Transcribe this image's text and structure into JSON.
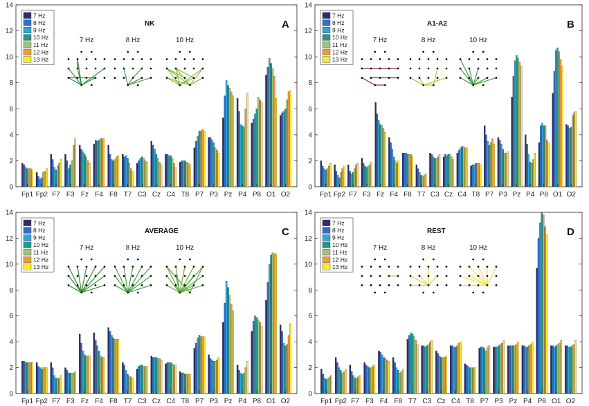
{
  "figure_title": "",
  "legend": {
    "entries": [
      "7 Hz",
      "8 Hz",
      "9 Hz",
      "10 Hz",
      "11 Hz",
      "12 Hz",
      "13 Hz"
    ],
    "colors": [
      "#2b2f6b",
      "#2f6fcf",
      "#2fa6da",
      "#1f9a8a",
      "#9cc47a",
      "#f09b3c",
      "#f7ee2a"
    ]
  },
  "inset_labels": [
    "7 Hz",
    "8 Hz",
    "10 Hz"
  ],
  "chart_data": [
    {
      "type": "bar",
      "title": "NK",
      "panel_letter": "A",
      "categories": [
        "Fp1",
        "Fp2",
        "F7",
        "F3",
        "Fz",
        "F4",
        "F8",
        "T7",
        "C3",
        "Cz",
        "C4",
        "T8",
        "P7",
        "P3",
        "Pz",
        "P4",
        "P8",
        "O1",
        "O2"
      ],
      "ylim": [
        0,
        14
      ],
      "yticks": [
        0,
        2,
        4,
        6,
        8,
        10,
        12,
        14
      ],
      "series": [
        {
          "name": "7 Hz",
          "values": [
            1.8,
            1.1,
            2.5,
            2.5,
            3.2,
            3.3,
            3.2,
            2.5,
            1.8,
            3.5,
            2.5,
            1.9,
            3.0,
            3.8,
            5.3,
            6.8,
            4.9,
            8.6,
            5.5
          ]
        },
        {
          "name": "8 Hz",
          "values": [
            1.7,
            0.8,
            2.1,
            2.0,
            2.9,
            3.6,
            2.5,
            2.3,
            2.0,
            3.2,
            2.5,
            2.0,
            3.5,
            3.8,
            7.0,
            5.8,
            5.2,
            9.2,
            5.7
          ]
        },
        {
          "name": "9 Hz",
          "values": [
            1.5,
            0.6,
            1.5,
            1.4,
            2.7,
            3.5,
            2.1,
            2.4,
            2.2,
            2.9,
            2.4,
            2.0,
            3.9,
            3.6,
            8.2,
            4.8,
            5.6,
            9.9,
            5.8
          ]
        },
        {
          "name": "10 Hz",
          "values": [
            1.4,
            0.7,
            1.3,
            1.7,
            2.5,
            3.6,
            2.0,
            2.2,
            2.3,
            2.5,
            2.4,
            2.0,
            4.3,
            3.4,
            7.8,
            4.7,
            6.0,
            9.5,
            6.0
          ]
        },
        {
          "name": "11 Hz",
          "values": [
            1.4,
            1.1,
            1.6,
            2.0,
            2.3,
            3.7,
            2.1,
            1.8,
            2.2,
            2.2,
            2.2,
            1.9,
            4.3,
            3.0,
            7.6,
            4.6,
            6.9,
            9.1,
            6.7
          ]
        },
        {
          "name": "12 Hz",
          "values": [
            1.4,
            1.2,
            1.8,
            3.2,
            2.0,
            3.7,
            2.3,
            1.4,
            2.0,
            1.9,
            1.8,
            1.8,
            4.4,
            2.8,
            7.3,
            6.0,
            6.7,
            8.5,
            7.3
          ]
        },
        {
          "name": "13 Hz",
          "values": [
            1.3,
            1.4,
            2.1,
            3.7,
            1.8,
            3.7,
            2.4,
            1.2,
            1.9,
            1.7,
            1.5,
            1.7,
            4.3,
            2.6,
            7.0,
            7.2,
            6.5,
            6.8,
            7.4
          ]
        }
      ],
      "xlabel": "",
      "ylabel": ""
    },
    {
      "type": "bar",
      "title": "A1-A2",
      "panel_letter": "B",
      "categories": [
        "Fp1",
        "Fp2",
        "F7",
        "F3",
        "Fz",
        "F4",
        "F8",
        "T7",
        "C3",
        "Cz",
        "C4",
        "T8",
        "P7",
        "P3",
        "Pz",
        "P4",
        "P8",
        "O1",
        "O2"
      ],
      "ylim": [
        0,
        14
      ],
      "yticks": [
        0,
        2,
        4,
        6,
        8,
        10,
        12,
        14
      ],
      "series": [
        {
          "name": "7 Hz",
          "values": [
            2.0,
            1.7,
            1.7,
            2.2,
            6.5,
            3.8,
            2.6,
            1.7,
            2.6,
            2.3,
            2.6,
            1.6,
            4.7,
            3.8,
            6.9,
            4.0,
            3.4,
            7.2,
            4.8
          ]
        },
        {
          "name": "8 Hz",
          "values": [
            1.6,
            1.2,
            1.2,
            1.8,
            5.6,
            3.4,
            2.6,
            1.4,
            2.5,
            2.5,
            2.8,
            1.7,
            4.0,
            3.6,
            8.5,
            3.3,
            4.7,
            8.9,
            4.7
          ]
        },
        {
          "name": "9 Hz",
          "values": [
            1.4,
            0.9,
            1.0,
            1.6,
            5.1,
            2.9,
            2.6,
            1.1,
            2.3,
            2.4,
            3.0,
            1.7,
            3.5,
            3.3,
            9.7,
            2.5,
            4.9,
            10.5,
            4.5
          ]
        },
        {
          "name": "10 Hz",
          "values": [
            1.3,
            0.7,
            1.1,
            1.5,
            4.8,
            2.3,
            2.5,
            0.9,
            2.2,
            2.5,
            3.1,
            1.8,
            3.2,
            2.9,
            10.1,
            1.9,
            4.7,
            10.7,
            4.6
          ]
        },
        {
          "name": "11 Hz",
          "values": [
            1.4,
            1.1,
            1.4,
            1.6,
            4.7,
            2.0,
            2.5,
            0.8,
            2.2,
            2.5,
            3.1,
            1.8,
            3.4,
            2.6,
            9.9,
            1.8,
            4.7,
            10.4,
            5.5
          ]
        },
        {
          "name": "12 Hz",
          "values": [
            1.6,
            1.4,
            1.7,
            1.7,
            4.5,
            1.8,
            2.5,
            0.9,
            2.3,
            2.3,
            3.0,
            1.8,
            3.7,
            2.6,
            9.6,
            2.1,
            3.6,
            9.8,
            5.7
          ]
        },
        {
          "name": "13 Hz",
          "values": [
            1.8,
            1.6,
            1.8,
            1.9,
            4.2,
            2.0,
            2.4,
            1.0,
            2.5,
            2.1,
            3.0,
            1.7,
            3.3,
            2.7,
            9.3,
            2.6,
            3.4,
            9.3,
            5.8
          ]
        }
      ],
      "xlabel": "",
      "ylabel": ""
    },
    {
      "type": "bar",
      "title": "AVERAGE",
      "panel_letter": "C",
      "categories": [
        "Fp1",
        "Fp2",
        "F7",
        "F3",
        "Fz",
        "F4",
        "F8",
        "T7",
        "C3",
        "Cz",
        "C4",
        "T8",
        "P7",
        "P3",
        "Pz",
        "P4",
        "P8",
        "O1",
        "O2"
      ],
      "ylim": [
        0,
        14
      ],
      "yticks": [
        0,
        2,
        4,
        6,
        8,
        10,
        12,
        14
      ],
      "series": [
        {
          "name": "7 Hz",
          "values": [
            2.5,
            2.4,
            2.4,
            2.0,
            4.6,
            4.7,
            5.1,
            2.4,
            1.9,
            2.9,
            2.3,
            1.7,
            3.5,
            3.0,
            5.5,
            2.2,
            4.8,
            7.2,
            5.3
          ]
        },
        {
          "name": "8 Hz",
          "values": [
            2.5,
            2.1,
            2.0,
            1.8,
            3.9,
            4.1,
            4.8,
            2.2,
            2.1,
            2.8,
            2.4,
            1.6,
            3.9,
            2.7,
            7.0,
            1.8,
            5.6,
            8.6,
            4.8
          ]
        },
        {
          "name": "9 Hz",
          "values": [
            2.4,
            2.0,
            1.4,
            1.6,
            3.3,
            3.7,
            4.5,
            1.8,
            2.2,
            2.8,
            2.4,
            1.6,
            4.3,
            2.6,
            8.7,
            1.6,
            6.0,
            10.0,
            3.9
          ]
        },
        {
          "name": "10 Hz",
          "values": [
            2.4,
            1.9,
            1.2,
            1.6,
            3.0,
            3.3,
            4.3,
            1.5,
            2.2,
            2.8,
            2.4,
            1.5,
            4.5,
            2.5,
            8.2,
            1.5,
            5.9,
            10.7,
            3.7
          ]
        },
        {
          "name": "11 Hz",
          "values": [
            2.4,
            2.0,
            1.2,
            1.6,
            2.9,
            2.9,
            4.2,
            1.3,
            2.1,
            2.7,
            2.3,
            1.5,
            4.4,
            2.5,
            7.6,
            1.6,
            5.7,
            10.9,
            3.8
          ]
        },
        {
          "name": "12 Hz",
          "values": [
            2.4,
            2.0,
            1.2,
            1.6,
            2.9,
            2.8,
            4.2,
            1.3,
            2.1,
            2.7,
            2.2,
            1.5,
            4.4,
            2.6,
            6.9,
            2.0,
            5.5,
            10.8,
            4.5
          ]
        },
        {
          "name": "13 Hz",
          "values": [
            2.4,
            2.0,
            1.4,
            1.7,
            2.9,
            2.8,
            4.2,
            1.2,
            2.1,
            2.6,
            2.2,
            1.5,
            4.4,
            2.8,
            6.4,
            2.5,
            5.2,
            10.8,
            5.4
          ]
        }
      ],
      "xlabel": "",
      "ylabel": ""
    },
    {
      "type": "bar",
      "title": "REST",
      "panel_letter": "D",
      "categories": [
        "Fp1",
        "Fp2",
        "F7",
        "F3",
        "F4",
        "F8",
        "T7",
        "C3",
        "Cz",
        "C4",
        "T8",
        "P7",
        "P3",
        "Pz",
        "P4",
        "P8",
        "O1",
        "O2"
      ],
      "ylim": [
        0,
        14
      ],
      "yticks": [
        0,
        2,
        4,
        6,
        8,
        10,
        12,
        14
      ],
      "series": [
        {
          "name": "7 Hz",
          "values": [
            1.9,
            2.8,
            2.2,
            2.4,
            3.3,
            2.8,
            4.2,
            3.7,
            3.3,
            3.7,
            2.3,
            3.5,
            3.6,
            3.7,
            3.7,
            9.7,
            3.7,
            3.7
          ]
        },
        {
          "name": "8 Hz",
          "values": [
            1.5,
            2.4,
            1.7,
            2.2,
            3.2,
            2.4,
            4.5,
            3.7,
            3.1,
            3.7,
            2.2,
            3.6,
            3.6,
            3.7,
            3.7,
            12.0,
            3.7,
            3.7
          ]
        },
        {
          "name": "9 Hz",
          "values": [
            1.2,
            2.0,
            1.4,
            2.1,
            3.0,
            2.0,
            4.7,
            3.6,
            2.9,
            3.6,
            2.1,
            3.6,
            3.6,
            3.7,
            3.6,
            13.2,
            3.6,
            3.6
          ]
        },
        {
          "name": "10 Hz",
          "values": [
            1.1,
            1.8,
            1.2,
            2.0,
            2.8,
            1.8,
            4.6,
            3.7,
            2.8,
            3.6,
            2.0,
            3.5,
            3.7,
            3.7,
            3.6,
            14.0,
            3.7,
            3.6
          ]
        },
        {
          "name": "11 Hz",
          "values": [
            1.2,
            1.6,
            1.2,
            2.0,
            2.7,
            1.6,
            4.4,
            3.8,
            2.8,
            3.7,
            2.0,
            3.3,
            3.8,
            3.7,
            3.7,
            13.8,
            3.8,
            3.7
          ]
        },
        {
          "name": "12 Hz",
          "values": [
            1.3,
            1.7,
            1.3,
            2.1,
            2.6,
            1.7,
            4.1,
            4.0,
            2.8,
            3.9,
            2.0,
            3.6,
            3.9,
            3.8,
            3.8,
            12.9,
            3.9,
            3.8
          ]
        },
        {
          "name": "13 Hz",
          "values": [
            1.4,
            1.9,
            1.4,
            2.2,
            2.5,
            1.9,
            3.8,
            4.1,
            2.9,
            4.0,
            2.0,
            3.7,
            4.1,
            4.0,
            4.0,
            12.3,
            4.1,
            4.1
          ]
        }
      ],
      "xlabel": "",
      "ylabel": ""
    }
  ]
}
